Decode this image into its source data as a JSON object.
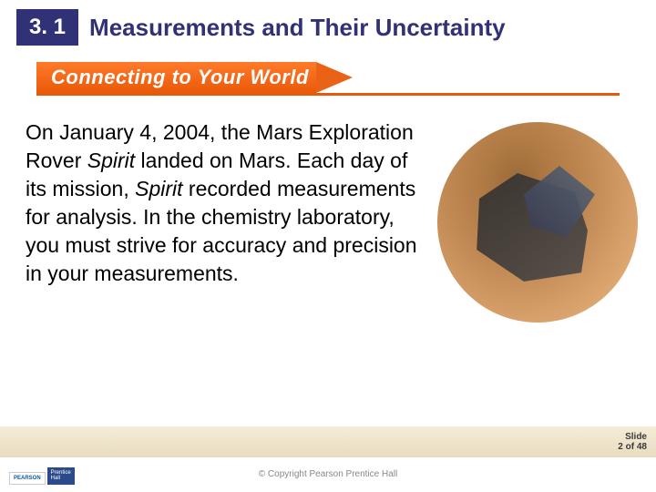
{
  "header": {
    "section_number": "3. 1",
    "title": "Measurements and Their Uncertainty"
  },
  "banner": {
    "label": "Connecting to Your World",
    "bg_start": "#ff7a2a",
    "bg_end": "#e85a0a",
    "underline_color": "#e85a0a",
    "text_color": "#ffffff"
  },
  "body": {
    "seg1": "On January 4, 2004, the Mars Exploration Rover ",
    "italic1": "Spirit",
    "seg2": " landed on Mars. Each day of its mission, ",
    "italic2": "Spirit",
    "seg3": " recorded measurements for analysis. In the chemistry laboratory, you must strive for accuracy and precision in your measurements."
  },
  "image": {
    "name": "mars-rover-spirit",
    "shape": "circle"
  },
  "footer": {
    "slide_label": "Slide",
    "page_current": "2",
    "page_of": "of",
    "page_total": "48",
    "copyright": "© Copyright Pearson Prentice Hall",
    "logo_pearson": "PEARSON",
    "logo_ph1": "Prentice",
    "logo_ph2": "Hall"
  },
  "colors": {
    "section_box_bg": "#313178",
    "section_box_text": "#ffffff",
    "title_text": "#313178",
    "body_text": "#000000",
    "footer_bg_top": "#f5edd8",
    "footer_bg_bottom": "#e8dcc0"
  }
}
